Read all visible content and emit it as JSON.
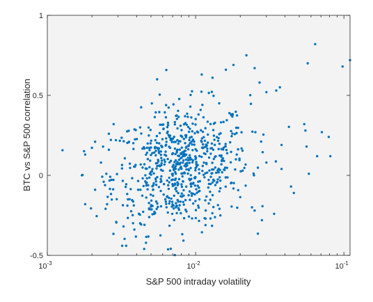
{
  "chart_data": {
    "type": "scatter",
    "title": "",
    "xlabel": "S&P 500 intraday volatility",
    "ylabel": "BTC vs S&P 500 correlation",
    "xscale": "log",
    "xlim": [
      0.001,
      0.11
    ],
    "ylim": [
      -0.5,
      1
    ],
    "xticks": [
      {
        "value": 0.001,
        "base": "10",
        "exp": "-3"
      },
      {
        "value": 0.01,
        "base": "10",
        "exp": "-2"
      },
      {
        "value": 0.1,
        "base": "10",
        "exp": "-1"
      }
    ],
    "yticks": [
      {
        "value": -0.5,
        "label": "-0.5"
      },
      {
        "value": 0,
        "label": "0"
      },
      {
        "value": 0.5,
        "label": "0.5"
      },
      {
        "value": 1,
        "label": "1"
      }
    ],
    "grid": false,
    "legend": "none",
    "colors": {
      "axes_background": "#f3f3f3",
      "marker": "#0072bd",
      "axis": "#262626"
    },
    "points_note_outliers": [
      [
        0.0018,
        0.13
      ],
      [
        0.0018,
        -0.18
      ],
      [
        0.0021,
        0.21
      ],
      [
        0.0021,
        -0.09
      ],
      [
        0.0032,
        -0.44
      ],
      [
        0.0034,
        -0.44
      ],
      [
        0.0045,
        -0.46
      ],
      [
        0.022,
        0.75
      ],
      [
        0.035,
        0.53
      ],
      [
        0.037,
        0.55
      ],
      [
        0.038,
        0.19
      ],
      [
        0.038,
        0.04
      ],
      [
        0.044,
        -0.07
      ],
      [
        0.046,
        -0.11
      ],
      [
        0.054,
        0.32
      ],
      [
        0.055,
        0.28
      ],
      [
        0.056,
        0.18
      ],
      [
        0.057,
        0.7
      ],
      [
        0.058,
        0.01
      ],
      [
        0.064,
        0.82
      ],
      [
        0.066,
        0.12
      ],
      [
        0.071,
        0.27
      ],
      [
        0.079,
        0.24
      ],
      [
        0.081,
        0.12
      ],
      [
        0.098,
        0.68
      ],
      [
        0.11,
        0.72
      ],
      [
        0.018,
        0.69
      ],
      [
        0.016,
        0.66
      ],
      [
        0.013,
        0.61
      ],
      [
        0.011,
        0.63
      ],
      [
        0.0055,
        0.6
      ],
      [
        0.025,
        0.67
      ],
      [
        0.027,
        0.58
      ],
      [
        0.03,
        0.52
      ],
      [
        0.024,
        -0.2
      ],
      [
        0.025,
        -0.22
      ],
      [
        0.028,
        -0.28
      ],
      [
        0.03,
        0.08
      ],
      [
        0.0026,
        0.16
      ],
      [
        0.0026,
        0.26
      ],
      [
        0.0028,
        0.32
      ],
      [
        0.0029,
        0.22
      ],
      [
        0.0025,
        0.01
      ],
      [
        0.0024,
        -0.04
      ],
      [
        0.0023,
        0.08
      ]
    ],
    "cloud": {
      "center_x": 0.008,
      "center_y": 0.05,
      "count": 720,
      "note": "dense cluster of points between x≈0.003 and x≈0.03, y≈-0.4 to 0.55"
    }
  }
}
